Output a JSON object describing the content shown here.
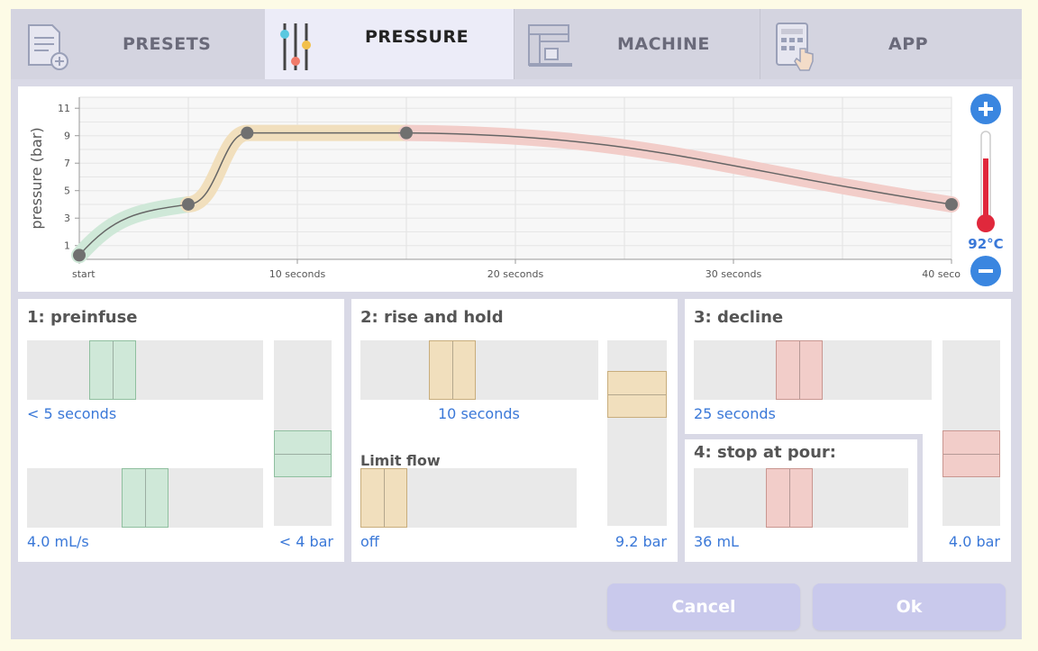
{
  "tabs": [
    {
      "label": "PRESETS",
      "icon": "presets-document-icon"
    },
    {
      "label": "PRESSURE",
      "icon": "sliders-icon",
      "active": true
    },
    {
      "label": "MACHINE",
      "icon": "espresso-machine-icon"
    },
    {
      "label": "APP",
      "icon": "tablet-touch-icon"
    }
  ],
  "temperature": {
    "label": "92°C",
    "level": 0.72
  },
  "colors": {
    "preinfuse": "#cfe8d8",
    "rise": "#f1dfbd",
    "decline": "#f2cdc9",
    "accent": "#3a78d8",
    "thermo": "#e0283c"
  },
  "chart_data": {
    "type": "line",
    "ylabel": "pressure (bar)",
    "xlabel": "",
    "y_ticks": [
      1,
      3,
      5,
      7,
      9,
      11
    ],
    "x_ticks": [
      {
        "value": 0,
        "label": "start"
      },
      {
        "value": 10,
        "label": "10 seconds"
      },
      {
        "value": 20,
        "label": "20 seconds"
      },
      {
        "value": 30,
        "label": "30 seconds"
      },
      {
        "value": 40,
        "label": "40 seco"
      }
    ],
    "xlim": [
      0,
      40
    ],
    "ylim": [
      0,
      11.8
    ],
    "grid": true,
    "points": [
      {
        "x": 0,
        "y": 0.3
      },
      {
        "x": 5,
        "y": 4.0
      },
      {
        "x": 7.7,
        "y": 9.2
      },
      {
        "x": 15,
        "y": 9.2
      },
      {
        "x": 40,
        "y": 4.0
      }
    ],
    "segments": [
      {
        "name": "preinfuse",
        "from": 0,
        "to": 1
      },
      {
        "name": "rise and hold",
        "from": 1,
        "to": 3
      },
      {
        "name": "decline",
        "from": 3,
        "to": 4
      }
    ]
  },
  "steps": {
    "preinfuse": {
      "title": "1: preinfuse",
      "time_label": "< 5 seconds",
      "time_level": 0.33,
      "flow_label": "4.0 mL/s",
      "flow_level": 0.5,
      "pressure_label": "< 4 bar",
      "pressure_level": 0.35
    },
    "rise": {
      "title": "2: rise and hold",
      "time_label": "10 seconds",
      "time_level": 0.36,
      "limit_flow_label": "Limit flow",
      "limit_flow_value": "off",
      "limit_flow_level": 0.0,
      "pressure_label": "9.2 bar",
      "pressure_level": 0.78
    },
    "decline": {
      "title": "3: decline",
      "time_label": "25 seconds",
      "time_level": 0.43,
      "pressure_label": "4.0 bar",
      "pressure_level": 0.35
    },
    "stop": {
      "title": "4: stop at pour:",
      "volume_label": "36 mL",
      "volume_level": 0.43
    }
  },
  "buttons": {
    "cancel": "Cancel",
    "ok": "Ok"
  }
}
